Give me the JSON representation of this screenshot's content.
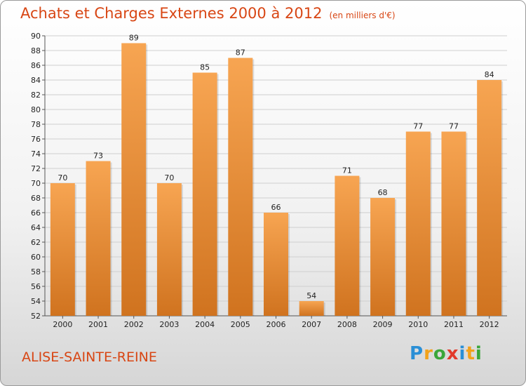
{
  "header": {
    "title": "Achats et Charges Externes 2000 à 2012",
    "subtitle": "(en milliers d'€)"
  },
  "footer": {
    "commune": "ALISE-SAINTE-REINE",
    "logo_text": "Proxiti"
  },
  "colors": {
    "title": "#d84614",
    "bar_light": "#f7a552",
    "bar_dark": "#d0731f",
    "logo_p": "#2a8fd6",
    "logo_r": "#f2a21a",
    "logo_o": "#3aa63a",
    "logo_x": "#e23a2a",
    "logo_i": "#2a8fd6",
    "logo_t": "#f2a21a",
    "logo_i2": "#3aa63a"
  },
  "chart_data": {
    "type": "bar",
    "categories": [
      "2000",
      "2001",
      "2002",
      "2003",
      "2004",
      "2005",
      "2006",
      "2007",
      "2008",
      "2009",
      "2010",
      "2011",
      "2012"
    ],
    "values": [
      70,
      73,
      89,
      70,
      85,
      87,
      66,
      54,
      71,
      68,
      77,
      77,
      84
    ],
    "ylim": [
      52,
      90
    ],
    "yticks": [
      52,
      54,
      56,
      58,
      60,
      62,
      64,
      66,
      68,
      70,
      72,
      74,
      76,
      78,
      80,
      82,
      84,
      86,
      88,
      90
    ],
    "grid": "horizontal",
    "xlabel": "",
    "ylabel": ""
  }
}
